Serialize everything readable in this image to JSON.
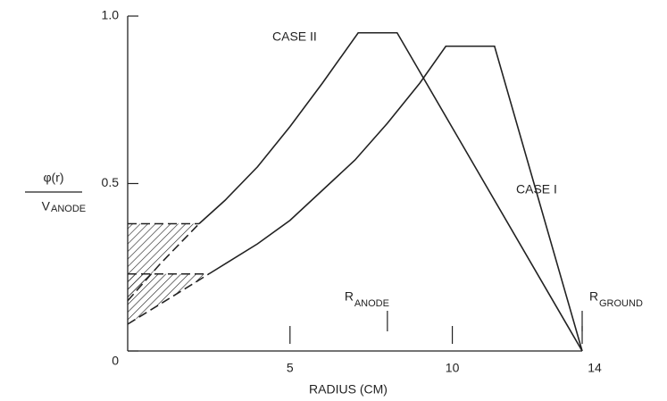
{
  "chart_data": {
    "type": "line",
    "xlabel": "RADIUS (CM)",
    "ylabel": {
      "numerator": "φ(r)",
      "denominator": "V",
      "denominator_sub": "ANODE"
    },
    "xlim": [
      0,
      14
    ],
    "ylim": [
      0,
      1
    ],
    "xticks": [
      5,
      10,
      14
    ],
    "yticks": [
      0,
      0.5,
      {
        "value": 1,
        "label": "1.0"
      }
    ],
    "color": "#222222",
    "series": [
      {
        "name": "CASE II",
        "dashed_points": 3,
        "x": [
          0,
          1,
          2.2,
          3,
          4,
          5,
          6,
          7.1,
          8.3,
          14
        ],
        "values": [
          0.15,
          0.26,
          0.38,
          0.45,
          0.55,
          0.67,
          0.8,
          0.95,
          0.95,
          0
        ]
      },
      {
        "name": "CASE I",
        "dashed_points": 3,
        "x": [
          0,
          1,
          2.5,
          4,
          5,
          6,
          7,
          8,
          9,
          9.8,
          11.3,
          14
        ],
        "values": [
          0.08,
          0.14,
          0.23,
          0.32,
          0.39,
          0.48,
          0.57,
          0.68,
          0.8,
          0.91,
          0.91,
          0
        ]
      }
    ],
    "annotations": [
      {
        "text": "R",
        "sub": "ANODE",
        "x": 8
      },
      {
        "text": "R",
        "sub": "GROUND",
        "x": 14
      }
    ]
  }
}
